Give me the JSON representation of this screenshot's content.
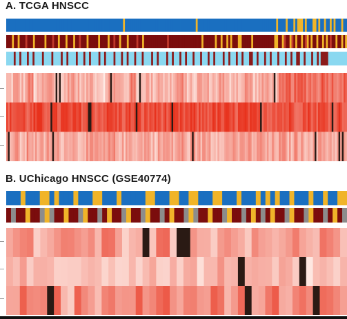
{
  "panels": [
    {
      "title": "A. TCGA HNSCC",
      "annotation_tracks": [
        {
          "palette": [
            "#1a6fc0",
            "#f0b429"
          ],
          "colors": "0000000000000000000000000000000000000000000000000000000000000100000000000000000000000000000000000001000000000000000000000000000000000000000001000010001011101000110100100101000100"
        },
        {
          "palette": [
            "#7b0d0d",
            "#f0b429",
            "#c0392b"
          ],
          "colors": "0001001000200010000010002001000100010020001000001000010020010001000020010000000000002000000000000000001000000100100101000110000010000000000011001200120100102101001001010200100101"
        },
        {
          "palette": [
            "#8ad8f0",
            "#8b1a1a",
            "#2c6fb0"
          ],
          "colors": "0000100100010010000100001000010010000100010010000100100001000100100010001000010010000100100010010001000100010010000100100010010001100100010010001000100100110010001001011110000000000"
        }
      ],
      "heatmap_rows": [
        [
          0.25,
          0.4,
          0.3,
          0.55,
          0.2,
          0.35,
          0.45,
          0.3,
          0.25,
          0.5,
          0.35,
          0.28,
          0.42,
          0.3,
          0.22,
          0.48,
          0.35,
          0.3,
          0.55,
          0.25,
          0.38,
          0.3,
          0.45,
          0.28,
          0.33,
          0.5,
          0.3,
          0.25,
          0.4,
          0.35,
          0.3,
          0.45,
          0.25,
          0.38,
          0.32,
          0.48,
          0.28,
          0.35,
          0.42,
          0.3,
          0.55,
          0.72,
          0.68,
          0.75,
          0.7,
          0.66,
          0.78,
          0.72,
          0.69,
          0.74
        ],
        [
          0.82,
          0.88,
          0.85,
          0.8,
          0.9,
          0.84,
          0.86,
          0.83,
          0.89,
          0.81,
          0.87,
          0.85,
          0.88,
          0.82,
          0.86,
          0.9,
          0.84,
          0.83,
          0.87,
          0.85,
          0.81,
          0.88,
          0.86,
          0.84,
          0.89,
          0.82,
          0.85,
          0.87,
          0.83,
          0.86,
          0.88,
          0.84,
          0.85,
          0.82,
          0.87,
          0.89,
          0.83,
          0.86,
          0.84,
          0.88,
          0.85,
          0.87,
          0.82,
          0.86,
          0.88,
          0.84,
          0.85,
          0.83,
          0.87,
          0.86
        ],
        [
          0.35,
          0.42,
          0.3,
          0.48,
          0.38,
          0.33,
          0.45,
          0.4,
          0.36,
          0.5,
          0.32,
          0.44,
          0.38,
          0.41,
          0.35,
          0.47,
          0.39,
          0.34,
          0.43,
          0.37,
          0.46,
          0.31,
          0.4,
          0.44,
          0.36,
          0.49,
          0.33,
          0.42,
          0.38,
          0.45,
          0.35,
          0.41,
          0.37,
          0.48,
          0.34,
          0.43,
          0.39,
          0.46,
          0.32,
          0.4,
          0.44,
          0.36,
          0.47,
          0.38,
          0.42,
          0.35,
          0.45,
          0.4,
          0.37,
          0.43
        ]
      ]
    },
    {
      "title": "B. UChicago HNSCC (GSE40774)",
      "annotation_tracks": [
        {
          "palette": [
            "#1a6fc0",
            "#f0b429"
          ],
          "colors": "00010001101000100011000100000110001100110001100010001010100100010010011"
        },
        {
          "palette": [
            "#7b0d0d",
            "#8c8c8c",
            "#f0b429"
          ],
          "colors": "01002001210020012001020012001200102001210020012001020102001200120010201"
        }
      ],
      "heatmap_rows": [
        [
          0.35,
          0.5,
          0.3,
          0.45,
          0.6,
          0.38,
          0.42,
          0.55,
          0.33,
          0.48,
          0.4,
          0.58,
          0.36,
          0.44,
          0.52,
          0.31,
          0.47,
          0.39,
          0.56,
          0.43,
          0.34,
          0.5,
          0.41,
          0.57,
          0.37
        ],
        [
          0.2,
          0.28,
          0.18,
          0.25,
          0.32,
          0.22,
          0.26,
          0.3,
          0.19,
          0.27,
          0.23,
          0.31,
          0.21,
          0.29,
          0.24,
          0.33,
          0.2,
          0.26,
          0.28,
          0.22,
          0.3,
          0.25,
          0.19,
          0.27,
          0.23
        ],
        [
          0.3,
          0.65,
          0.4,
          0.7,
          0.35,
          0.6,
          0.45,
          0.72,
          0.38,
          0.62,
          0.5,
          0.68,
          0.33,
          0.58,
          0.42,
          0.75,
          0.36,
          0.64,
          0.48,
          0.7,
          0.39,
          0.66,
          0.44,
          0.61,
          0.52
        ]
      ]
    }
  ],
  "chart_data": [
    {
      "type": "heatmap",
      "title": "A. TCGA HNSCC",
      "annotation_tracks": 3,
      "rows": 3
    },
    {
      "type": "heatmap",
      "title": "B. UChicago HNSCC (GSE40774)",
      "annotation_tracks": 2,
      "rows": 3
    }
  ],
  "colors": {
    "heat_low": "#fff3ee",
    "heat_high": "#e8321d",
    "heat_dark": "#2a1a14"
  }
}
